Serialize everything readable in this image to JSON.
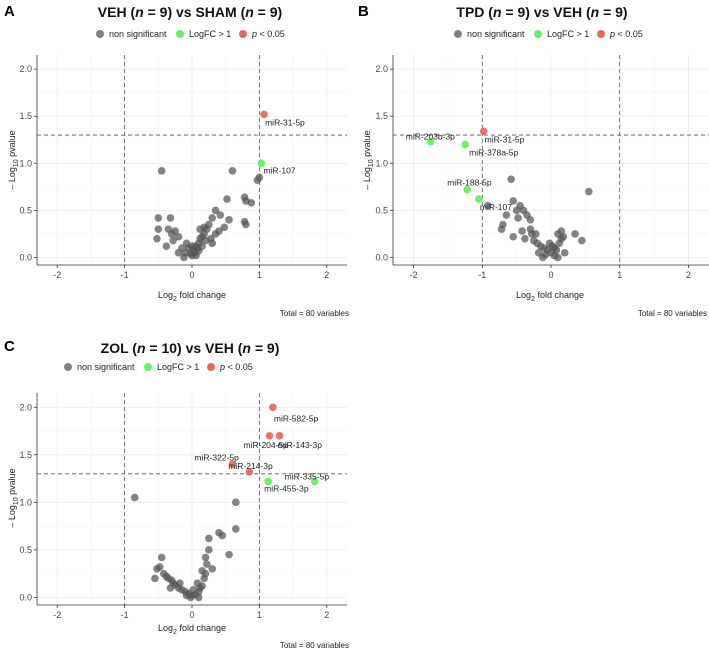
{
  "colors": {
    "non_significant": "#555555",
    "logfc": "#66ee66",
    "pval": "#e06a62",
    "grid": "#ebebeb",
    "threshold_line": "#555555"
  },
  "legend": {
    "non_significant": "non significant",
    "logfc": "LogFC > 1",
    "p_prefix": "p",
    "p_suffix": " < 0.05"
  },
  "chart_data": [
    {
      "panel": "A",
      "type": "scatter",
      "title_parts": [
        "VEH (",
        "n",
        " = 9) vs SHAM (",
        "n",
        " = 9)"
      ],
      "xlabel": {
        "base": "Log",
        "sub": "2",
        "rest": " fold change"
      },
      "ylabel": {
        "pre": "– Log",
        "sub": "10",
        "rest": " pvalue"
      },
      "xlim": [
        -2.3,
        2.3
      ],
      "ylim": [
        -0.08,
        2.15
      ],
      "xticks": [
        -2,
        -1,
        0,
        1,
        2
      ],
      "yticks": [
        0.0,
        0.5,
        1.0,
        1.5,
        2.0
      ],
      "ytick_labels": [
        "0.0",
        "0.5",
        "1.0",
        "1.5",
        "2.0"
      ],
      "thresholds": {
        "x": [
          -1,
          1
        ],
        "y": 1.3
      },
      "footnote": "Total = 80 variables",
      "points": [
        {
          "x": 1.07,
          "y": 1.52,
          "cat": "pval",
          "label": "miR-31-5p"
        },
        {
          "x": 1.03,
          "y": 1.0,
          "cat": "logfc",
          "label": "miR-107"
        },
        {
          "x": -0.45,
          "y": 0.92,
          "cat": "ns"
        },
        {
          "x": 1.0,
          "y": 0.85,
          "cat": "ns"
        },
        {
          "x": 0.97,
          "y": 0.82,
          "cat": "ns"
        },
        {
          "x": 0.6,
          "y": 0.92,
          "cat": "ns"
        },
        {
          "x": 0.52,
          "y": 0.62,
          "cat": "ns"
        },
        {
          "x": 0.78,
          "y": 0.64,
          "cat": "ns"
        },
        {
          "x": 0.8,
          "y": 0.6,
          "cat": "ns"
        },
        {
          "x": 0.88,
          "y": 0.58,
          "cat": "ns"
        },
        {
          "x": 0.35,
          "y": 0.5,
          "cat": "ns"
        },
        {
          "x": 0.42,
          "y": 0.45,
          "cat": "ns"
        },
        {
          "x": 0.3,
          "y": 0.42,
          "cat": "ns"
        },
        {
          "x": 0.55,
          "y": 0.4,
          "cat": "ns"
        },
        {
          "x": 0.78,
          "y": 0.38,
          "cat": "ns"
        },
        {
          "x": 0.8,
          "y": 0.35,
          "cat": "ns"
        },
        {
          "x": 0.25,
          "y": 0.35,
          "cat": "ns"
        },
        {
          "x": 0.22,
          "y": 0.3,
          "cat": "ns"
        },
        {
          "x": 0.48,
          "y": 0.32,
          "cat": "ns"
        },
        {
          "x": 0.4,
          "y": 0.28,
          "cat": "ns"
        },
        {
          "x": 0.18,
          "y": 0.25,
          "cat": "ns"
        },
        {
          "x": 0.15,
          "y": 0.22,
          "cat": "ns"
        },
        {
          "x": 0.12,
          "y": 0.2,
          "cat": "ns"
        },
        {
          "x": 0.28,
          "y": 0.2,
          "cat": "ns"
        },
        {
          "x": 0.2,
          "y": 0.18,
          "cat": "ns"
        },
        {
          "x": 0.1,
          "y": 0.15,
          "cat": "ns"
        },
        {
          "x": 0.05,
          "y": 0.12,
          "cat": "ns"
        },
        {
          "x": 0.08,
          "y": 0.1,
          "cat": "ns"
        },
        {
          "x": 0.15,
          "y": 0.12,
          "cat": "ns"
        },
        {
          "x": 0.02,
          "y": 0.08,
          "cat": "ns"
        },
        {
          "x": 0.04,
          "y": 0.05,
          "cat": "ns"
        },
        {
          "x": 0.1,
          "y": 0.07,
          "cat": "ns"
        },
        {
          "x": -0.02,
          "y": 0.04,
          "cat": "ns"
        },
        {
          "x": 0.0,
          "y": 0.02,
          "cat": "ns"
        },
        {
          "x": 0.06,
          "y": 0.02,
          "cat": "ns"
        },
        {
          "x": -0.05,
          "y": 0.1,
          "cat": "ns"
        },
        {
          "x": -0.08,
          "y": 0.15,
          "cat": "ns"
        },
        {
          "x": -0.1,
          "y": 0.05,
          "cat": "ns"
        },
        {
          "x": -0.15,
          "y": 0.1,
          "cat": "ns"
        },
        {
          "x": -0.2,
          "y": 0.22,
          "cat": "ns"
        },
        {
          "x": -0.25,
          "y": 0.28,
          "cat": "ns"
        },
        {
          "x": -0.3,
          "y": 0.25,
          "cat": "ns"
        },
        {
          "x": -0.35,
          "y": 0.3,
          "cat": "ns"
        },
        {
          "x": -0.38,
          "y": 0.12,
          "cat": "ns"
        },
        {
          "x": -0.2,
          "y": 0.05,
          "cat": "ns"
        },
        {
          "x": -0.5,
          "y": 0.42,
          "cat": "ns"
        },
        {
          "x": -0.5,
          "y": 0.3,
          "cat": "ns"
        },
        {
          "x": -0.52,
          "y": 0.2,
          "cat": "ns"
        },
        {
          "x": -0.28,
          "y": 0.18,
          "cat": "ns"
        },
        {
          "x": -0.32,
          "y": 0.42,
          "cat": "ns"
        },
        {
          "x": 0.18,
          "y": 0.32,
          "cat": "ns"
        },
        {
          "x": 0.3,
          "y": 0.15,
          "cat": "ns"
        },
        {
          "x": 0.12,
          "y": 0.3,
          "cat": "ns"
        },
        {
          "x": -0.12,
          "y": 0.0,
          "cat": "ns"
        },
        {
          "x": 0.0,
          "y": 0.12,
          "cat": "ns"
        },
        {
          "x": 0.35,
          "y": 0.25,
          "cat": "ns"
        }
      ]
    },
    {
      "panel": "B",
      "type": "scatter",
      "title_parts": [
        "TPD (",
        "n",
        " = 9) vs VEH (",
        "n",
        " = 9)"
      ],
      "xlabel": {
        "base": "Log",
        "sub": "2",
        "rest": " fold change"
      },
      "ylabel": {
        "pre": "– Log",
        "sub": "10",
        "rest": " pvalue"
      },
      "xlim": [
        -2.3,
        2.3
      ],
      "ylim": [
        -0.08,
        2.15
      ],
      "xticks": [
        -2,
        -1,
        0,
        1,
        2
      ],
      "yticks": [
        0.0,
        0.5,
        1.0,
        1.5,
        2.0
      ],
      "ytick_labels": [
        "0.0",
        "0.5",
        "1.0",
        "1.5",
        "2.0"
      ],
      "thresholds": {
        "x": [
          -1,
          1
        ],
        "y": 1.3
      },
      "footnote": "Total = 80 variables",
      "points": [
        {
          "x": -1.75,
          "y": 1.23,
          "cat": "logfc",
          "label": "miR-203b-3p"
        },
        {
          "x": -1.25,
          "y": 1.2,
          "cat": "logfc",
          "label": "miR-378a-5p"
        },
        {
          "x": -0.98,
          "y": 1.34,
          "cat": "pval",
          "label": "miR-31-5p"
        },
        {
          "x": -1.22,
          "y": 0.72,
          "cat": "logfc",
          "label": "miR-188-5p"
        },
        {
          "x": -1.05,
          "y": 0.62,
          "cat": "logfc",
          "label": "miR-107"
        },
        {
          "x": -0.92,
          "y": 0.55,
          "cat": "ns"
        },
        {
          "x": -0.58,
          "y": 0.83,
          "cat": "ns"
        },
        {
          "x": 0.55,
          "y": 0.7,
          "cat": "ns"
        },
        {
          "x": -0.55,
          "y": 0.6,
          "cat": "ns"
        },
        {
          "x": -0.45,
          "y": 0.55,
          "cat": "ns"
        },
        {
          "x": -0.5,
          "y": 0.5,
          "cat": "ns"
        },
        {
          "x": -0.4,
          "y": 0.5,
          "cat": "ns"
        },
        {
          "x": -0.35,
          "y": 0.45,
          "cat": "ns"
        },
        {
          "x": -0.48,
          "y": 0.42,
          "cat": "ns"
        },
        {
          "x": -0.3,
          "y": 0.4,
          "cat": "ns"
        },
        {
          "x": -0.7,
          "y": 0.35,
          "cat": "ns"
        },
        {
          "x": -0.72,
          "y": 0.3,
          "cat": "ns"
        },
        {
          "x": -0.42,
          "y": 0.28,
          "cat": "ns"
        },
        {
          "x": -0.28,
          "y": 0.25,
          "cat": "ns"
        },
        {
          "x": -0.55,
          "y": 0.22,
          "cat": "ns"
        },
        {
          "x": -0.38,
          "y": 0.2,
          "cat": "ns"
        },
        {
          "x": -0.25,
          "y": 0.18,
          "cat": "ns"
        },
        {
          "x": -0.2,
          "y": 0.15,
          "cat": "ns"
        },
        {
          "x": -0.15,
          "y": 0.12,
          "cat": "ns"
        },
        {
          "x": -0.1,
          "y": 0.1,
          "cat": "ns"
        },
        {
          "x": -0.05,
          "y": 0.08,
          "cat": "ns"
        },
        {
          "x": 0.0,
          "y": 0.05,
          "cat": "ns"
        },
        {
          "x": -0.08,
          "y": 0.03,
          "cat": "ns"
        },
        {
          "x": 0.05,
          "y": 0.02,
          "cat": "ns"
        },
        {
          "x": -0.12,
          "y": 0.0,
          "cat": "ns"
        },
        {
          "x": 0.02,
          "y": 0.12,
          "cat": "ns"
        },
        {
          "x": 0.08,
          "y": 0.08,
          "cat": "ns"
        },
        {
          "x": 0.12,
          "y": 0.15,
          "cat": "ns"
        },
        {
          "x": 0.15,
          "y": 0.2,
          "cat": "ns"
        },
        {
          "x": 0.18,
          "y": 0.22,
          "cat": "ns"
        },
        {
          "x": 0.1,
          "y": 0.25,
          "cat": "ns"
        },
        {
          "x": 0.15,
          "y": 0.28,
          "cat": "ns"
        },
        {
          "x": 0.35,
          "y": 0.25,
          "cat": "ns"
        },
        {
          "x": 0.45,
          "y": 0.18,
          "cat": "ns"
        },
        {
          "x": 0.2,
          "y": 0.05,
          "cat": "ns"
        },
        {
          "x": -0.18,
          "y": 0.05,
          "cat": "ns"
        },
        {
          "x": -0.02,
          "y": 0.15,
          "cat": "ns"
        },
        {
          "x": 0.05,
          "y": 0.1,
          "cat": "ns"
        },
        {
          "x": -0.65,
          "y": 0.45,
          "cat": "ns"
        },
        {
          "x": -0.3,
          "y": 0.3,
          "cat": "ns"
        },
        {
          "x": 0.1,
          "y": 0.0,
          "cat": "ns"
        },
        {
          "x": -0.22,
          "y": 0.25,
          "cat": "ns"
        }
      ]
    },
    {
      "panel": "C",
      "type": "scatter",
      "title_parts": [
        "ZOL (",
        "n",
        " = 10) vs VEH (",
        "n",
        " = 9)"
      ],
      "xlabel": {
        "base": "Log",
        "sub": "2",
        "rest": " fold change"
      },
      "ylabel": {
        "pre": "– Log",
        "sub": "10",
        "rest": " pvalue"
      },
      "xlim": [
        -2.3,
        2.3
      ],
      "ylim": [
        -0.08,
        2.15
      ],
      "xticks": [
        -2,
        -1,
        0,
        1,
        2
      ],
      "yticks": [
        0.0,
        0.5,
        1.0,
        1.5,
        2.0
      ],
      "ytick_labels": [
        "0.0",
        "0.5",
        "1.0",
        "1.5",
        "2.0"
      ],
      "thresholds": {
        "x": [
          -1,
          1
        ],
        "y": 1.3
      },
      "footnote": "Total = 80 variables",
      "points": [
        {
          "x": 1.2,
          "y": 2.0,
          "cat": "pval",
          "label": "miR-582-5p"
        },
        {
          "x": 1.15,
          "y": 1.7,
          "cat": "pval",
          "label": "miR-204-5p"
        },
        {
          "x": 1.3,
          "y": 1.7,
          "cat": "pval",
          "label": "miR-143-3p"
        },
        {
          "x": 0.6,
          "y": 1.4,
          "cat": "pval",
          "label": "miR-322-5p"
        },
        {
          "x": 0.85,
          "y": 1.32,
          "cat": "pval",
          "label": "miR-214-3p"
        },
        {
          "x": 1.82,
          "y": 1.22,
          "cat": "logfc",
          "label": "miR-335-5p"
        },
        {
          "x": 1.13,
          "y": 1.22,
          "cat": "logfc",
          "label": "miR-455-3p"
        },
        {
          "x": -0.85,
          "y": 1.05,
          "cat": "ns"
        },
        {
          "x": 0.65,
          "y": 1.0,
          "cat": "ns"
        },
        {
          "x": 0.65,
          "y": 0.72,
          "cat": "ns"
        },
        {
          "x": 0.4,
          "y": 0.68,
          "cat": "ns"
        },
        {
          "x": 0.45,
          "y": 0.65,
          "cat": "ns"
        },
        {
          "x": 0.25,
          "y": 0.62,
          "cat": "ns"
        },
        {
          "x": 0.25,
          "y": 0.5,
          "cat": "ns"
        },
        {
          "x": 0.55,
          "y": 0.45,
          "cat": "ns"
        },
        {
          "x": 0.2,
          "y": 0.42,
          "cat": "ns"
        },
        {
          "x": -0.45,
          "y": 0.42,
          "cat": "ns"
        },
        {
          "x": 0.22,
          "y": 0.35,
          "cat": "ns"
        },
        {
          "x": -0.48,
          "y": 0.32,
          "cat": "ns"
        },
        {
          "x": -0.52,
          "y": 0.3,
          "cat": "ns"
        },
        {
          "x": -0.42,
          "y": 0.25,
          "cat": "ns"
        },
        {
          "x": -0.38,
          "y": 0.22,
          "cat": "ns"
        },
        {
          "x": -0.35,
          "y": 0.2,
          "cat": "ns"
        },
        {
          "x": -0.3,
          "y": 0.18,
          "cat": "ns"
        },
        {
          "x": -0.28,
          "y": 0.15,
          "cat": "ns"
        },
        {
          "x": -0.25,
          "y": 0.13,
          "cat": "ns"
        },
        {
          "x": -0.2,
          "y": 0.1,
          "cat": "ns"
        },
        {
          "x": -0.15,
          "y": 0.08,
          "cat": "ns"
        },
        {
          "x": -0.1,
          "y": 0.06,
          "cat": "ns"
        },
        {
          "x": -0.05,
          "y": 0.04,
          "cat": "ns"
        },
        {
          "x": 0.0,
          "y": 0.02,
          "cat": "ns"
        },
        {
          "x": 0.05,
          "y": 0.03,
          "cat": "ns"
        },
        {
          "x": 0.1,
          "y": 0.06,
          "cat": "ns"
        },
        {
          "x": 0.12,
          "y": 0.1,
          "cat": "ns"
        },
        {
          "x": 0.15,
          "y": 0.12,
          "cat": "ns"
        },
        {
          "x": 0.18,
          "y": 0.2,
          "cat": "ns"
        },
        {
          "x": 0.2,
          "y": 0.25,
          "cat": "ns"
        },
        {
          "x": 0.08,
          "y": 0.15,
          "cat": "ns"
        },
        {
          "x": 0.02,
          "y": 0.08,
          "cat": "ns"
        },
        {
          "x": -0.02,
          "y": 0.0,
          "cat": "ns"
        },
        {
          "x": -0.08,
          "y": 0.02,
          "cat": "ns"
        },
        {
          "x": 0.15,
          "y": 0.28,
          "cat": "ns"
        },
        {
          "x": -0.55,
          "y": 0.2,
          "cat": "ns"
        },
        {
          "x": -0.32,
          "y": 0.1,
          "cat": "ns"
        },
        {
          "x": 0.3,
          "y": 0.3,
          "cat": "ns"
        },
        {
          "x": 0.1,
          "y": 0.0,
          "cat": "ns"
        },
        {
          "x": -0.18,
          "y": 0.15,
          "cat": "ns"
        }
      ]
    }
  ]
}
